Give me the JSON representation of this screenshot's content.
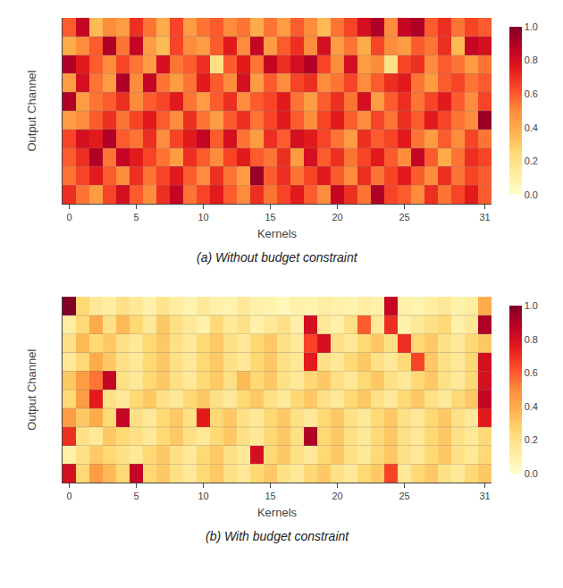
{
  "chart_data": [
    {
      "type": "heatmap",
      "title": "(a) Without budget constraint",
      "xlabel": "Kernels",
      "ylabel": "Output Channel",
      "color": "YlOrRd",
      "tick_labels": "x",
      "xlim": [
        -0.5,
        31.5
      ],
      "xticks": [
        0,
        5,
        10,
        15,
        20,
        25,
        31
      ],
      "colorbar_range": [
        0.0,
        1.0
      ],
      "colorbar_ticks": [
        {
          "value": 0.0,
          "label": "0.0"
        },
        0.2,
        0.4,
        0.6,
        0.8,
        {
          "value": 1.0,
          "label": "1.0"
        }
      ],
      "cells": [
        [
          0.6,
          0.85,
          0.35,
          0.5,
          0.45,
          0.7,
          0.55,
          0.4,
          0.65,
          0.45,
          0.55,
          0.6,
          0.5,
          0.55,
          0.4,
          0.55,
          0.45,
          0.6,
          0.5,
          0.35,
          0.55,
          0.65,
          0.8,
          0.9,
          0.5,
          0.85,
          0.9,
          0.6,
          0.7,
          0.55,
          0.65,
          0.6
        ],
        [
          0.4,
          0.5,
          0.6,
          0.9,
          0.55,
          0.85,
          0.45,
          0.35,
          0.65,
          0.5,
          0.45,
          0.6,
          0.75,
          0.5,
          0.85,
          0.45,
          0.6,
          0.7,
          0.5,
          0.8,
          0.45,
          0.55,
          0.4,
          0.65,
          0.5,
          0.45,
          0.6,
          0.55,
          0.7,
          0.35,
          0.85,
          0.8
        ],
        [
          0.9,
          0.75,
          0.6,
          0.5,
          0.65,
          0.55,
          0.45,
          0.8,
          0.55,
          0.6,
          0.7,
          0.2,
          0.6,
          0.75,
          0.55,
          0.85,
          0.7,
          0.8,
          0.9,
          0.65,
          0.5,
          0.8,
          0.45,
          0.5,
          0.2,
          0.65,
          0.7,
          0.5,
          0.6,
          0.55,
          0.45,
          0.55
        ],
        [
          0.45,
          0.8,
          0.55,
          0.45,
          0.9,
          0.5,
          0.85,
          0.55,
          0.45,
          0.55,
          0.75,
          0.6,
          0.5,
          0.8,
          0.45,
          0.6,
          0.5,
          0.65,
          0.7,
          0.5,
          0.55,
          0.65,
          0.5,
          0.6,
          0.7,
          0.75,
          0.55,
          0.45,
          0.6,
          0.65,
          0.55,
          0.6
        ],
        [
          0.9,
          0.45,
          0.55,
          0.6,
          0.7,
          0.5,
          0.6,
          0.65,
          0.75,
          0.55,
          0.45,
          0.6,
          0.7,
          0.5,
          0.6,
          0.65,
          0.75,
          0.55,
          0.45,
          0.6,
          0.7,
          0.55,
          0.8,
          0.45,
          0.6,
          0.7,
          0.55,
          0.65,
          0.75,
          0.6,
          0.5,
          0.65
        ],
        [
          0.45,
          0.5,
          0.6,
          0.7,
          0.55,
          0.65,
          0.75,
          0.6,
          0.5,
          0.7,
          0.55,
          0.45,
          0.6,
          0.7,
          0.55,
          0.65,
          0.75,
          0.6,
          0.5,
          0.65,
          0.75,
          0.6,
          0.5,
          0.65,
          0.55,
          0.7,
          0.6,
          0.75,
          0.65,
          0.55,
          0.5,
          0.95
        ],
        [
          0.65,
          0.8,
          0.75,
          0.9,
          0.6,
          0.55,
          0.7,
          0.5,
          0.65,
          0.75,
          0.85,
          0.6,
          0.8,
          0.55,
          0.45,
          0.7,
          0.6,
          0.8,
          0.75,
          0.65,
          0.55,
          0.45,
          0.7,
          0.6,
          0.65,
          0.75,
          0.55,
          0.45,
          0.6,
          0.5,
          0.65,
          0.55
        ],
        [
          0.6,
          0.7,
          0.9,
          0.55,
          0.85,
          0.75,
          0.65,
          0.55,
          0.45,
          0.7,
          0.6,
          0.5,
          0.65,
          0.75,
          0.6,
          0.55,
          0.7,
          0.45,
          0.8,
          0.6,
          0.7,
          0.55,
          0.65,
          0.75,
          0.6,
          0.5,
          0.85,
          0.6,
          0.4,
          0.55,
          0.7,
          0.65
        ],
        [
          0.55,
          0.65,
          0.75,
          0.6,
          0.5,
          0.7,
          0.55,
          0.65,
          0.75,
          0.6,
          0.5,
          0.7,
          0.55,
          0.45,
          0.95,
          0.6,
          0.7,
          0.55,
          0.65,
          0.75,
          0.6,
          0.5,
          0.7,
          0.55,
          0.65,
          0.75,
          0.6,
          0.5,
          0.7,
          0.55,
          0.65,
          0.6
        ],
        [
          0.7,
          0.55,
          0.45,
          0.65,
          0.8,
          0.6,
          0.5,
          0.7,
          0.85,
          0.55,
          0.65,
          0.75,
          0.6,
          0.5,
          0.7,
          0.55,
          0.65,
          0.75,
          0.6,
          0.5,
          0.85,
          0.7,
          0.55,
          0.9,
          0.65,
          0.6,
          0.5,
          0.7,
          0.55,
          0.65,
          0.75,
          0.6
        ]
      ]
    },
    {
      "type": "heatmap",
      "title": "(b) With budget constraint",
      "xlabel": "Kernels",
      "ylabel": "Output Channel",
      "color": "YlOrRd",
      "tick_labels": "x",
      "xlim": [
        -0.5,
        31.5
      ],
      "xticks": [
        0,
        5,
        10,
        15,
        20,
        25,
        31
      ],
      "colorbar_range": [
        0.0,
        1.0
      ],
      "colorbar_ticks": [
        {
          "value": 0.0,
          "label": "0.0"
        },
        0.2,
        0.4,
        0.6,
        0.8,
        {
          "value": 1.0,
          "label": "1.0"
        }
      ],
      "cells": [
        [
          1.0,
          0.25,
          0.15,
          0.12,
          0.2,
          0.15,
          0.1,
          0.18,
          0.12,
          0.08,
          0.15,
          0.1,
          0.08,
          0.15,
          0.1,
          0.08,
          0.05,
          0.1,
          0.08,
          0.12,
          0.1,
          0.08,
          0.12,
          0.1,
          0.85,
          0.1,
          0.08,
          0.12,
          0.15,
          0.1,
          0.12,
          0.4
        ],
        [
          0.12,
          0.25,
          0.4,
          0.2,
          0.35,
          0.25,
          0.15,
          0.3,
          0.2,
          0.15,
          0.1,
          0.25,
          0.15,
          0.2,
          0.1,
          0.15,
          0.2,
          0.1,
          0.8,
          0.15,
          0.1,
          0.2,
          0.6,
          0.15,
          0.7,
          0.1,
          0.15,
          0.2,
          0.25,
          0.1,
          0.15,
          0.9
        ],
        [
          0.2,
          0.35,
          0.25,
          0.3,
          0.2,
          0.15,
          0.25,
          0.3,
          0.2,
          0.15,
          0.25,
          0.3,
          0.2,
          0.15,
          0.25,
          0.3,
          0.2,
          0.15,
          0.65,
          0.8,
          0.2,
          0.15,
          0.25,
          0.3,
          0.2,
          0.7,
          0.25,
          0.3,
          0.2,
          0.15,
          0.25,
          0.3
        ],
        [
          0.15,
          0.25,
          0.4,
          0.3,
          0.2,
          0.15,
          0.25,
          0.3,
          0.2,
          0.15,
          0.25,
          0.3,
          0.2,
          0.15,
          0.25,
          0.3,
          0.2,
          0.15,
          0.75,
          0.2,
          0.15,
          0.25,
          0.3,
          0.2,
          0.15,
          0.25,
          0.65,
          0.3,
          0.2,
          0.15,
          0.25,
          0.8
        ],
        [
          0.3,
          0.45,
          0.55,
          0.85,
          0.2,
          0.15,
          0.25,
          0.3,
          0.2,
          0.15,
          0.25,
          0.3,
          0.2,
          0.35,
          0.25,
          0.3,
          0.2,
          0.15,
          0.25,
          0.3,
          0.2,
          0.15,
          0.25,
          0.3,
          0.2,
          0.15,
          0.25,
          0.3,
          0.2,
          0.15,
          0.25,
          0.8
        ],
        [
          0.25,
          0.45,
          0.75,
          0.2,
          0.15,
          0.25,
          0.3,
          0.2,
          0.15,
          0.25,
          0.3,
          0.2,
          0.15,
          0.25,
          0.3,
          0.2,
          0.15,
          0.25,
          0.3,
          0.2,
          0.15,
          0.25,
          0.3,
          0.2,
          0.15,
          0.25,
          0.3,
          0.2,
          0.15,
          0.25,
          0.3,
          0.85
        ],
        [
          0.45,
          0.3,
          0.4,
          0.25,
          0.85,
          0.2,
          0.15,
          0.25,
          0.3,
          0.2,
          0.75,
          0.25,
          0.3,
          0.2,
          0.15,
          0.25,
          0.3,
          0.2,
          0.15,
          0.25,
          0.3,
          0.2,
          0.15,
          0.25,
          0.3,
          0.2,
          0.15,
          0.25,
          0.3,
          0.2,
          0.15,
          0.75
        ],
        [
          0.7,
          0.2,
          0.15,
          0.3,
          0.25,
          0.2,
          0.15,
          0.25,
          0.3,
          0.2,
          0.15,
          0.25,
          0.3,
          0.2,
          0.15,
          0.25,
          0.3,
          0.2,
          0.9,
          0.25,
          0.3,
          0.2,
          0.15,
          0.25,
          0.3,
          0.2,
          0.15,
          0.25,
          0.3,
          0.2,
          0.15,
          0.25
        ],
        [
          0.1,
          0.2,
          0.3,
          0.25,
          0.2,
          0.15,
          0.25,
          0.3,
          0.2,
          0.15,
          0.25,
          0.3,
          0.2,
          0.15,
          0.8,
          0.25,
          0.3,
          0.2,
          0.15,
          0.25,
          0.3,
          0.2,
          0.15,
          0.25,
          0.3,
          0.2,
          0.15,
          0.25,
          0.3,
          0.2,
          0.15,
          0.25
        ],
        [
          0.8,
          0.25,
          0.45,
          0.35,
          0.25,
          0.85,
          0.25,
          0.3,
          0.2,
          0.15,
          0.25,
          0.3,
          0.2,
          0.15,
          0.25,
          0.3,
          0.2,
          0.15,
          0.25,
          0.3,
          0.2,
          0.15,
          0.25,
          0.3,
          0.65,
          0.15,
          0.25,
          0.3,
          0.2,
          0.15,
          0.25,
          0.3
        ]
      ]
    }
  ]
}
